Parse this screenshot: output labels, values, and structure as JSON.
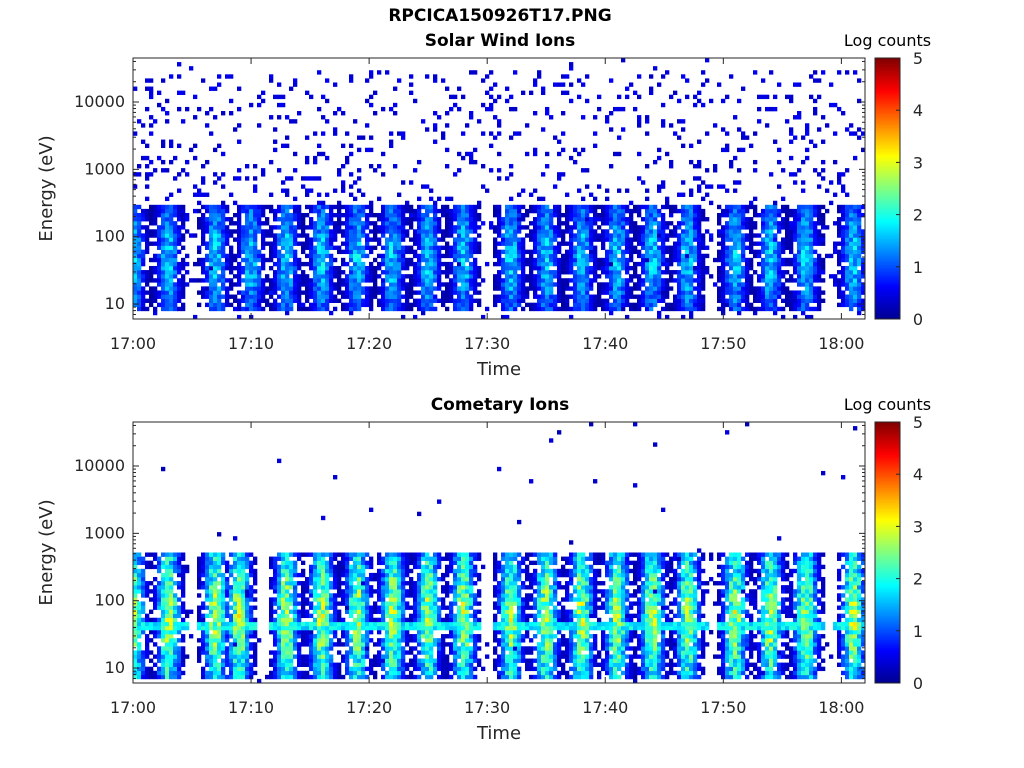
{
  "figure_title": "RPCICA150926T17.PNG",
  "colorscale": [
    "#00008f",
    "#0000ff",
    "#0080ff",
    "#00ffff",
    "#80ff80",
    "#ffff00",
    "#ff8000",
    "#ff0000",
    "#800000"
  ],
  "chart_data": [
    {
      "type": "heatmap",
      "title": "Solar Wind Ions",
      "xlabel": "Time",
      "ylabel": "Energy (eV)",
      "x_ticks": [
        "17:00",
        "17:10",
        "17:20",
        "17:30",
        "17:40",
        "17:50",
        "18:00"
      ],
      "xlim": [
        "17:00",
        "18:02"
      ],
      "y_scale": "log",
      "y_ticks": [
        10,
        100,
        1000,
        10000
      ],
      "ylim": [
        6,
        45000
      ],
      "colorbar_label": "Log counts",
      "colorbar_ticks": [
        0,
        1,
        2,
        3,
        4,
        5
      ],
      "clim": [
        0,
        5
      ],
      "signal": {
        "sparse_background": true,
        "background_level": 0.3,
        "band_energy_range": [
          8,
          300
        ],
        "band_peak_level": 1.6,
        "burst_times": [
          "17:00",
          "17:03",
          "17:07",
          "17:10",
          "17:13",
          "17:16",
          "17:19",
          "17:22",
          "17:25",
          "17:28",
          "17:32",
          "17:35",
          "17:38",
          "17:41",
          "17:44",
          "17:47",
          "17:51",
          "17:54",
          "17:57",
          "18:01"
        ]
      }
    },
    {
      "type": "heatmap",
      "title": "Cometary Ions",
      "xlabel": "Time",
      "ylabel": "Energy (eV)",
      "x_ticks": [
        "17:00",
        "17:10",
        "17:20",
        "17:30",
        "17:40",
        "17:50",
        "18:00"
      ],
      "xlim": [
        "17:00",
        "18:02"
      ],
      "y_scale": "log",
      "y_ticks": [
        10,
        100,
        1000,
        10000
      ],
      "ylim": [
        6,
        45000
      ],
      "colorbar_label": "Log counts",
      "colorbar_ticks": [
        0,
        1,
        2,
        3,
        4,
        5
      ],
      "clim": [
        0,
        5
      ],
      "signal": {
        "sparse_background": false,
        "background_level": 0.1,
        "band_energy_range": [
          7,
          500
        ],
        "band_peak_level": 2.6,
        "baseline_energy": 42,
        "burst_times": [
          "17:00",
          "17:03",
          "17:07",
          "17:09",
          "17:13",
          "17:16",
          "17:19",
          "17:22",
          "17:25",
          "17:28",
          "17:32",
          "17:35",
          "17:38",
          "17:41",
          "17:44",
          "17:47",
          "17:51",
          "17:54",
          "17:57",
          "18:01"
        ]
      }
    }
  ]
}
